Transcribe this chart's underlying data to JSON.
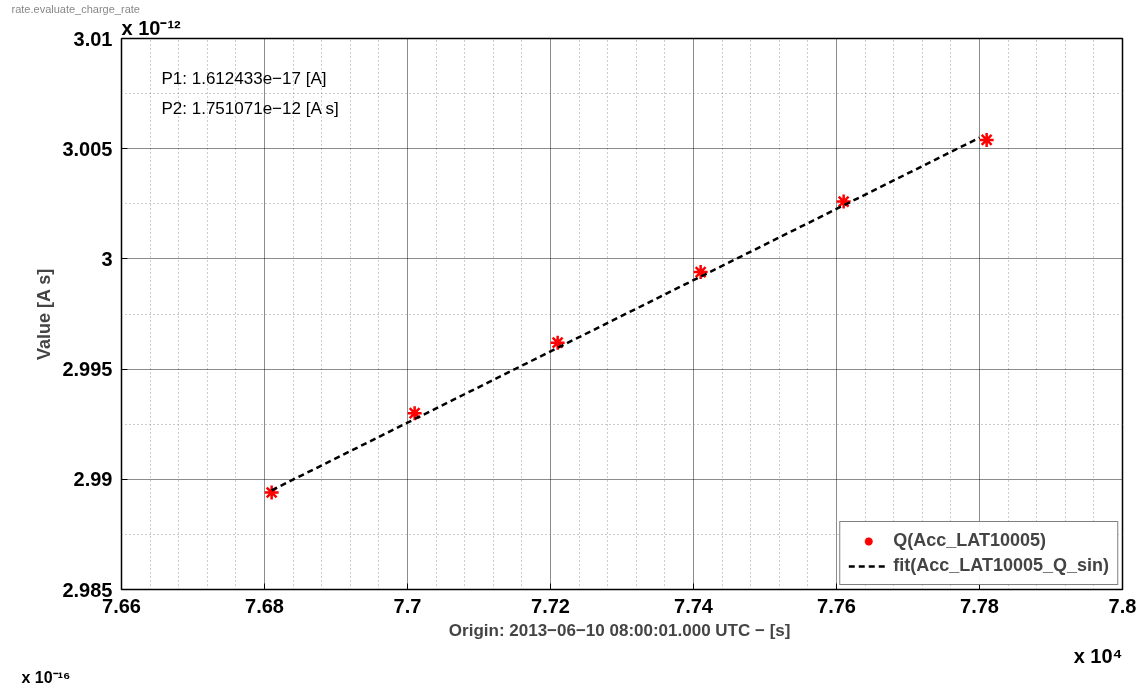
{
  "chart_data": {
    "type": "scatter",
    "xlabel": "Origin: 2013−06−10 08:00:01.000 UTC −  [s]",
    "ylabel": "Value [A s]",
    "x": [
      7.681,
      7.701,
      7.721,
      7.741,
      7.761,
      7.781
    ],
    "series": [
      {
        "name": "Q(Acc_LAT10005)",
        "color": "#ff0000",
        "marker": "cross",
        "values": [
          2.9894,
          2.993,
          2.9962,
          2.9994,
          3.0026,
          3.0054
        ]
      },
      {
        "name": "fit(Acc_LAT10005_Q_sin)",
        "type": "line",
        "color": "#000000",
        "line_style": "dashed",
        "x": [
          7.681,
          7.78
        ],
        "values": [
          2.9895,
          3.0055
        ]
      }
    ],
    "xlim": [
      7.66,
      7.8
    ],
    "xticks": [
      7.66,
      7.68,
      {
        "value": 7.7,
        "label": "7.7"
      },
      7.72,
      7.74,
      7.76,
      7.78,
      {
        "value": 7.8,
        "label": "7.8"
      }
    ],
    "ylim": [
      2.985,
      3.01
    ],
    "yticks": [
      2.985,
      {
        "value": 2.99,
        "label": "2.99"
      },
      2.995,
      {
        "value": 3.0,
        "label": "3"
      },
      3.005,
      {
        "value": 3.01,
        "label": "3.01"
      }
    ],
    "grid": true,
    "legend": "bottom right",
    "annotations": [
      "P1: 1.612433e−17 [A]",
      "P2: 1.751071e−12 [A s]",
      "x 10⁻¹²",
      "x 10⁴",
      "x 10⁻¹⁶",
      "rate.evaluate_charge_rate"
    ]
  }
}
